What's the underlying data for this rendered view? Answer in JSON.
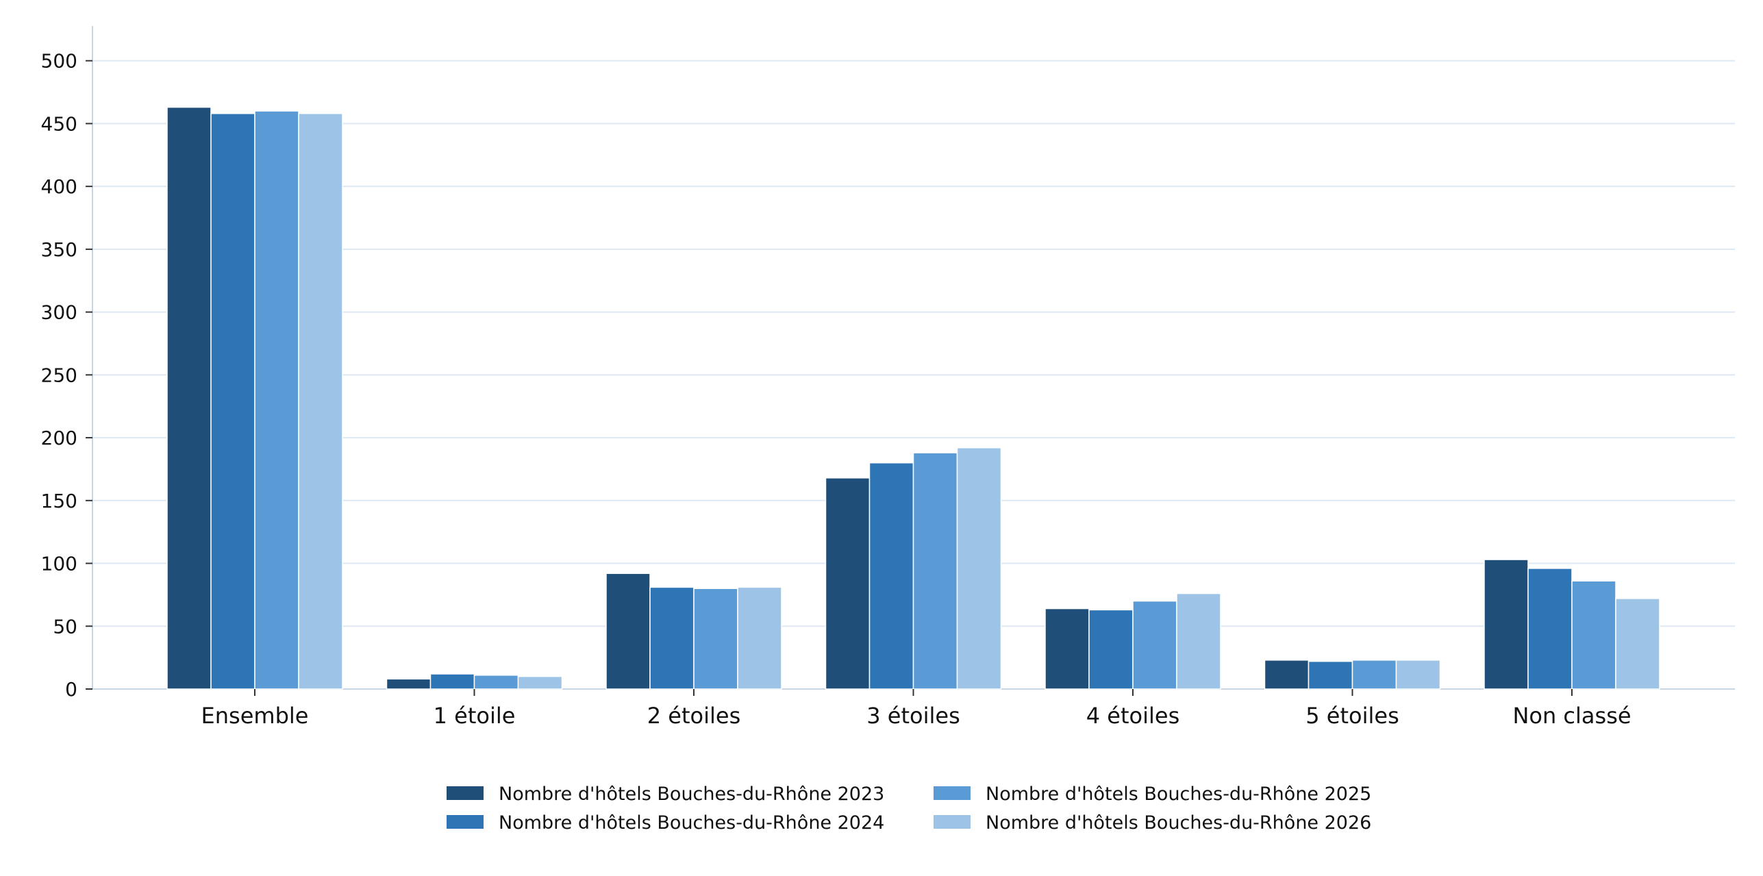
{
  "chart_data": {
    "type": "bar",
    "title": "",
    "xlabel": "",
    "ylabel": "",
    "categories": [
      "Ensemble",
      "1 étoile",
      "2 étoiles",
      "3 étoiles",
      "4 étoiles",
      "5 étoiles",
      "Non classé"
    ],
    "series": [
      {
        "name": "Nombre d'hôtels Bouches-du-Rhône 2023",
        "color": "#1f4e79",
        "values": [
          463,
          8,
          92,
          168,
          64,
          23,
          103
        ]
      },
      {
        "name": "Nombre d'hôtels Bouches-du-Rhône 2024",
        "color": "#2e75b6",
        "values": [
          458,
          12,
          81,
          180,
          63,
          22,
          96
        ]
      },
      {
        "name": "Nombre d'hôtels Bouches-du-Rhône 2025",
        "color": "#5b9bd5",
        "values": [
          460,
          11,
          80,
          188,
          70,
          23,
          86
        ]
      },
      {
        "name": "Nombre d'hôtels Bouches-du-Rhône 2026",
        "color": "#9dc3e6",
        "values": [
          458,
          10,
          81,
          192,
          76,
          23,
          72
        ]
      }
    ],
    "ylim": [
      0,
      520
    ],
    "yticks": [
      0,
      50,
      100,
      150,
      200,
      250,
      300,
      350,
      400,
      450,
      500
    ],
    "grid": true,
    "legend_position": "bottom-center"
  }
}
